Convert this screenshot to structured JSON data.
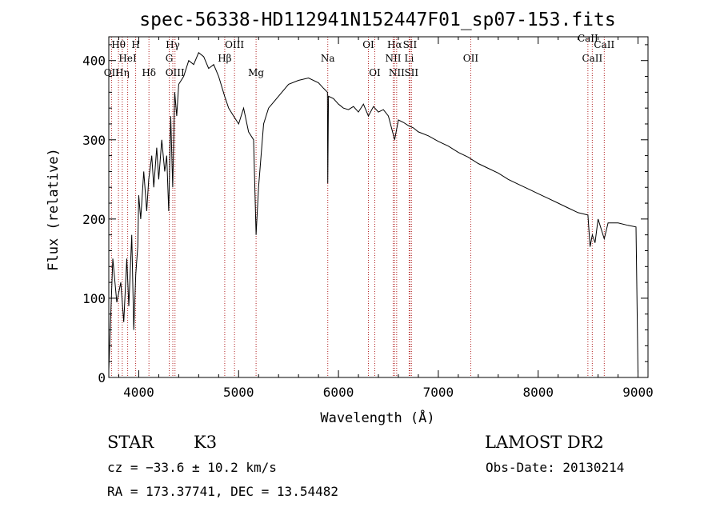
{
  "chart_data": {
    "type": "line",
    "title": "spec-56338-HD112941N152447F01_sp07-153.fits",
    "xlabel": "Wavelength (Å)",
    "ylabel": "Flux (relative)",
    "xlim": [
      3700,
      9100
    ],
    "ylim": [
      0,
      430
    ],
    "xticks": [
      4000,
      5000,
      6000,
      7000,
      8000,
      9000
    ],
    "yticks": [
      0,
      100,
      200,
      300,
      400
    ],
    "grid": false,
    "legend": "none",
    "line_color": "#000000",
    "marker_line_color": "#b22222",
    "spectrum": {
      "name": "",
      "x": [
        3700,
        3740,
        3780,
        3820,
        3850,
        3880,
        3900,
        3930,
        3950,
        3970,
        3990,
        4000,
        4020,
        4050,
        4080,
        4100,
        4130,
        4150,
        4180,
        4200,
        4230,
        4260,
        4280,
        4300,
        4320,
        4340,
        4360,
        4380,
        4400,
        4450,
        4500,
        4550,
        4600,
        4650,
        4700,
        4750,
        4800,
        4860,
        4900,
        4950,
        5000,
        5050,
        5100,
        5150,
        5175,
        5200,
        5250,
        5300,
        5400,
        5500,
        5600,
        5700,
        5800,
        5850,
        5890,
        5893,
        5900,
        5950,
        6000,
        6050,
        6100,
        6150,
        6200,
        6250,
        6300,
        6350,
        6400,
        6450,
        6500,
        6563,
        6600,
        6650,
        6700,
        6750,
        6800,
        6900,
        7000,
        7100,
        7200,
        7300,
        7400,
        7500,
        7600,
        7700,
        7800,
        7900,
        8000,
        8100,
        8200,
        8300,
        8400,
        8498,
        8520,
        8542,
        8570,
        8600,
        8662,
        8700,
        8800,
        8900,
        8980,
        9000
      ],
      "y": [
        10,
        150,
        95,
        120,
        70,
        150,
        90,
        180,
        60,
        130,
        165,
        230,
        200,
        260,
        210,
        250,
        280,
        240,
        290,
        250,
        300,
        260,
        280,
        210,
        330,
        240,
        360,
        330,
        370,
        380,
        400,
        395,
        410,
        405,
        390,
        395,
        380,
        355,
        340,
        330,
        320,
        340,
        310,
        300,
        180,
        240,
        320,
        340,
        355,
        370,
        375,
        378,
        372,
        365,
        360,
        245,
        355,
        352,
        345,
        340,
        338,
        342,
        335,
        345,
        330,
        342,
        335,
        338,
        330,
        300,
        325,
        322,
        318,
        315,
        310,
        305,
        298,
        292,
        284,
        278,
        270,
        264,
        258,
        250,
        244,
        238,
        232,
        226,
        220,
        214,
        208,
        205,
        165,
        180,
        170,
        200,
        175,
        195,
        195,
        192,
        190,
        5
      ]
    },
    "line_markers": [
      {
        "label": "Hθ",
        "x": 3797,
        "row": 1
      },
      {
        "label": "OII",
        "x": 3727,
        "row": 3
      },
      {
        "label": "Hη",
        "x": 3835,
        "row": 3
      },
      {
        "label": "H",
        "x": 3969,
        "row": 1
      },
      {
        "label": "HeI",
        "x": 3889,
        "row": 2
      },
      {
        "label": "Hδ",
        "x": 4102,
        "row": 3
      },
      {
        "label": "Hγ",
        "x": 4341,
        "row": 1
      },
      {
        "label": "G",
        "x": 4305,
        "row": 2
      },
      {
        "label": "OIII",
        "x": 4363,
        "row": 3
      },
      {
        "label": "OIII",
        "x": 4959,
        "row": 1
      },
      {
        "label": "Hβ",
        "x": 4861,
        "row": 2
      },
      {
        "label": "Mg",
        "x": 5175,
        "row": 3
      },
      {
        "label": "Na",
        "x": 5893,
        "row": 2
      },
      {
        "label": "OI",
        "x": 6300,
        "row": 1
      },
      {
        "label": "OI",
        "x": 6364,
        "row": 3
      },
      {
        "label": "Hα",
        "x": 6563,
        "row": 1
      },
      {
        "label": "SII",
        "x": 6716,
        "row": 1
      },
      {
        "label": "NII",
        "x": 6548,
        "row": 2
      },
      {
        "label": "Li",
        "x": 6708,
        "row": 2
      },
      {
        "label": "NII",
        "x": 6583,
        "row": 3
      },
      {
        "label": "SII",
        "x": 6731,
        "row": 3
      },
      {
        "label": "OII",
        "x": 7325,
        "row": 2
      },
      {
        "label": "CaII",
        "x": 8662,
        "row": 1
      },
      {
        "label": "CaII",
        "x": 8542,
        "row": 2
      },
      {
        "label": "CaII",
        "x": 8498,
        "row": 0
      }
    ]
  },
  "info": {
    "object_class": "STAR",
    "subclass": "K3",
    "survey": "LAMOST DR2",
    "redshift": "cz = −33.6 ± 10.2 km/s",
    "obs_date": "Obs-Date: 20130214",
    "coords": "RA = 173.37741, DEC =  13.54482"
  }
}
